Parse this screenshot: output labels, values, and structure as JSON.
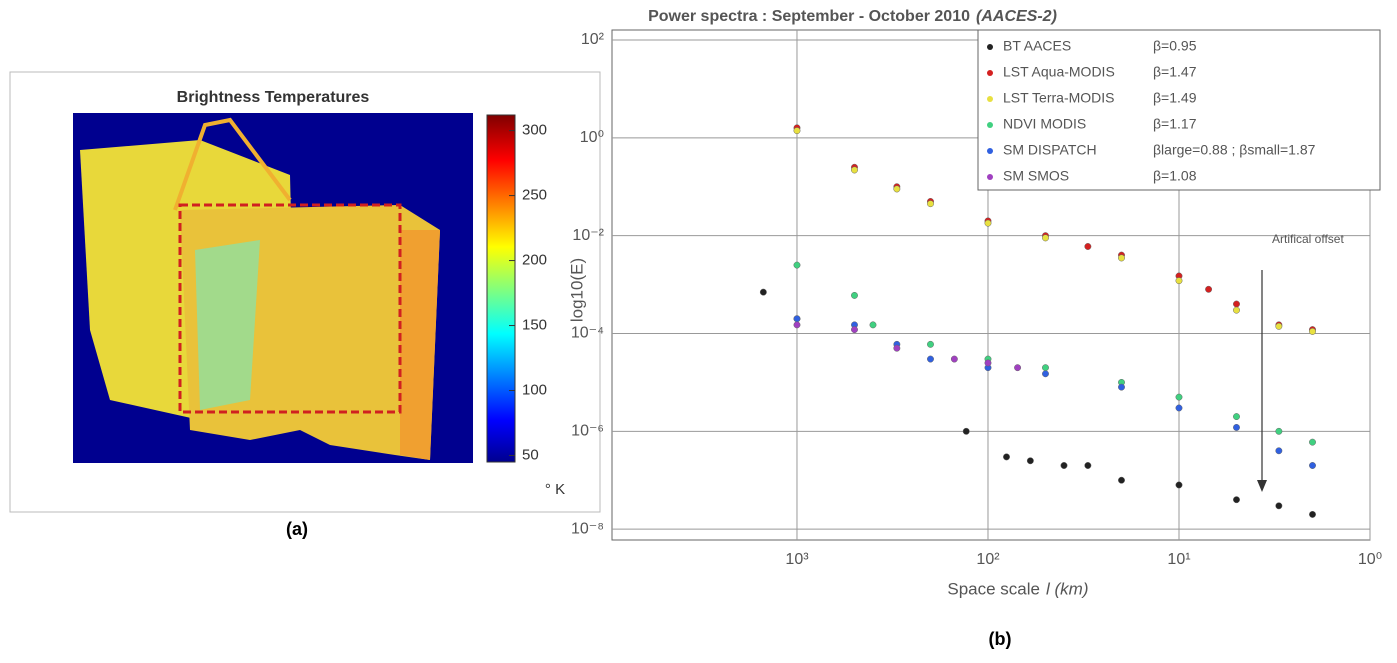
{
  "chart_data": [
    {
      "type": "heatmap",
      "title": "Brightness Temperatures",
      "panel_label": "(a)",
      "colorbar": {
        "label": "° K",
        "lim": [
          45,
          312
        ],
        "ticks": [
          50,
          100,
          150,
          200,
          250,
          300
        ]
      }
    },
    {
      "type": "scatter",
      "title": "Power spectra : September - October 2010",
      "title_italic": "(AACES-2)",
      "panel_label": "(b)",
      "x_label": "Space scale",
      "x_label_italic": "l (km)",
      "y_label": "log10(E)",
      "log_x": true,
      "log_y": true,
      "grid": true,
      "xlim": [
        9300,
        1
      ],
      "xticks": [
        {
          "value": 1000,
          "label": "10³"
        },
        {
          "value": 100,
          "label": "10²"
        },
        {
          "value": 10,
          "label": "10¹"
        },
        {
          "value": 1,
          "label": "10⁰"
        }
      ],
      "ylim": [
        160,
        6e-09
      ],
      "yticks": [
        {
          "value": 100,
          "label": "10²"
        },
        {
          "value": 1,
          "label": "10⁰"
        },
        {
          "value": 0.01,
          "label": "10⁻²"
        },
        {
          "value": 0.0001,
          "label": "10⁻⁴"
        },
        {
          "value": 1e-06,
          "label": "10⁻⁶"
        },
        {
          "value": 1e-08,
          "label": "10⁻⁸"
        }
      ],
      "annotation": "Artifical offset",
      "series": [
        {
          "name": "BT AACES",
          "beta": "β=0.95",
          "color": "#222222",
          "x": [
            1500,
            1000,
            130,
            80,
            60,
            40,
            30,
            20,
            10,
            5,
            3,
            2
          ],
          "values": [
            0.0007,
            0.0002,
            1e-06,
            3e-07,
            2.5e-07,
            2e-07,
            2e-07,
            1e-07,
            8e-08,
            4e-08,
            3e-08,
            2e-08
          ]
        },
        {
          "name": "LST Aqua-MODIS",
          "beta": "β=1.47",
          "color": "#d42020",
          "x": [
            1000,
            500,
            300,
            200,
            100,
            50,
            30,
            20,
            10,
            7,
            5,
            3,
            2
          ],
          "values": [
            1.6,
            0.25,
            0.1,
            0.05,
            0.02,
            0.01,
            0.006,
            0.004,
            0.0015,
            0.0008,
            0.0004,
            0.00015,
            0.00012
          ]
        },
        {
          "name": "LST Terra-MODIS",
          "beta": "β=1.49",
          "color": "#e8e040",
          "x": [
            1000,
            500,
            300,
            200,
            100,
            50,
            20,
            10,
            5,
            3,
            2
          ],
          "values": [
            1.4,
            0.22,
            0.09,
            0.045,
            0.018,
            0.009,
            0.0035,
            0.0012,
            0.0003,
            0.00014,
            0.00011
          ]
        },
        {
          "name": "NDVI MODIS",
          "beta": "β=1.17",
          "color": "#40d080",
          "x": [
            1000,
            500,
            400,
            200,
            100,
            50,
            20,
            10,
            5,
            3,
            2
          ],
          "values": [
            0.0025,
            0.0006,
            0.00015,
            6e-05,
            3e-05,
            2e-05,
            1e-05,
            5e-06,
            2e-06,
            1e-06,
            6e-07
          ]
        },
        {
          "name": "SM DISPATCH",
          "beta": "βlarge=0.88 ; βsmall=1.87",
          "color": "#3060e0",
          "x": [
            1000,
            500,
            300,
            200,
            100,
            50,
            20,
            10,
            5,
            3,
            2
          ],
          "values": [
            0.0002,
            0.00015,
            6e-05,
            3e-05,
            2e-05,
            1.5e-05,
            8e-06,
            3e-06,
            1.2e-06,
            4e-07,
            2e-07
          ]
        },
        {
          "name": "SM SMOS",
          "beta": "β=1.08",
          "color": "#a040c0",
          "x": [
            1000,
            500,
            300,
            150,
            100,
            70
          ],
          "values": [
            0.00015,
            0.00012,
            5e-05,
            3e-05,
            2.5e-05,
            2e-05
          ]
        }
      ]
    }
  ]
}
